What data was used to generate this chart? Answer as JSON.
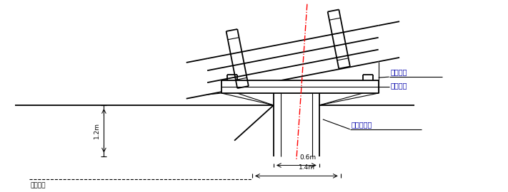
{
  "bg_color": "#ffffff",
  "line_color": "#000000",
  "red_dash_color": "#ff0000",
  "label_color_blue": "#0000aa",
  "figsize": [
    7.11,
    2.7
  ],
  "dpi": 100,
  "labels": {
    "positioning_steel": "定位型钉",
    "guard_inner_edge1": "笼护内边",
    "guard_inner_edge2": "笼护内边线",
    "center_line": "中心轴线",
    "dim_06": "0.6m",
    "dim_14": "1.4m",
    "dim_12": "1.2m"
  }
}
